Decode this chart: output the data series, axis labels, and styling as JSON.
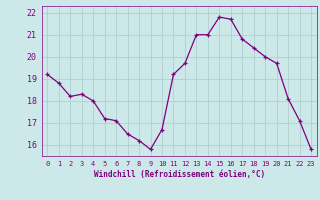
{
  "x": [
    0,
    1,
    2,
    3,
    4,
    5,
    6,
    7,
    8,
    9,
    10,
    11,
    12,
    13,
    14,
    15,
    16,
    17,
    18,
    19,
    20,
    21,
    22,
    23
  ],
  "y": [
    19.2,
    18.8,
    18.2,
    18.3,
    18.0,
    17.2,
    17.1,
    16.5,
    16.2,
    15.8,
    16.7,
    19.2,
    19.7,
    21.0,
    21.0,
    21.8,
    21.7,
    20.8,
    20.4,
    20.0,
    19.7,
    18.1,
    17.1,
    15.8
  ],
  "line_color": "#800080",
  "marker": "+",
  "marker_size": 3,
  "bg_color": "#cce8e8",
  "grid_color": "#aacccc",
  "xlabel": "Windchill (Refroidissement éolien,°C)",
  "xlabel_color": "#800080",
  "tick_color": "#800080",
  "ylim": [
    15.5,
    22.3
  ],
  "xlim": [
    -0.5,
    23.5
  ],
  "yticks": [
    16,
    17,
    18,
    19,
    20,
    21,
    22
  ],
  "xticks": [
    0,
    1,
    2,
    3,
    4,
    5,
    6,
    7,
    8,
    9,
    10,
    11,
    12,
    13,
    14,
    15,
    16,
    17,
    18,
    19,
    20,
    21,
    22,
    23
  ],
  "title": ""
}
